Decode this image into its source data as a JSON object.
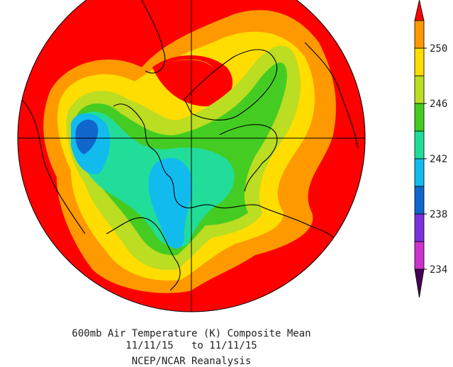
{
  "title": "600mb Air Temperature (K) Composite Mean",
  "date_range": "11/11/15   to 11/11/15",
  "source": "NCEP/NCAR Reanalysis",
  "colorbar": {
    "bounds": [
      234,
      236,
      238,
      240,
      242,
      244,
      246,
      248,
      250,
      252
    ],
    "colors": [
      "#cc33cc",
      "#7733dd",
      "#1166cc",
      "#11bbee",
      "#22dd99",
      "#44cc22",
      "#bbdd22",
      "#ffdd00",
      "#ff9900"
    ],
    "under_color": "#440055",
    "over_color": "#ff0000",
    "ticks": [
      234,
      238,
      242,
      246,
      250
    ]
  }
}
